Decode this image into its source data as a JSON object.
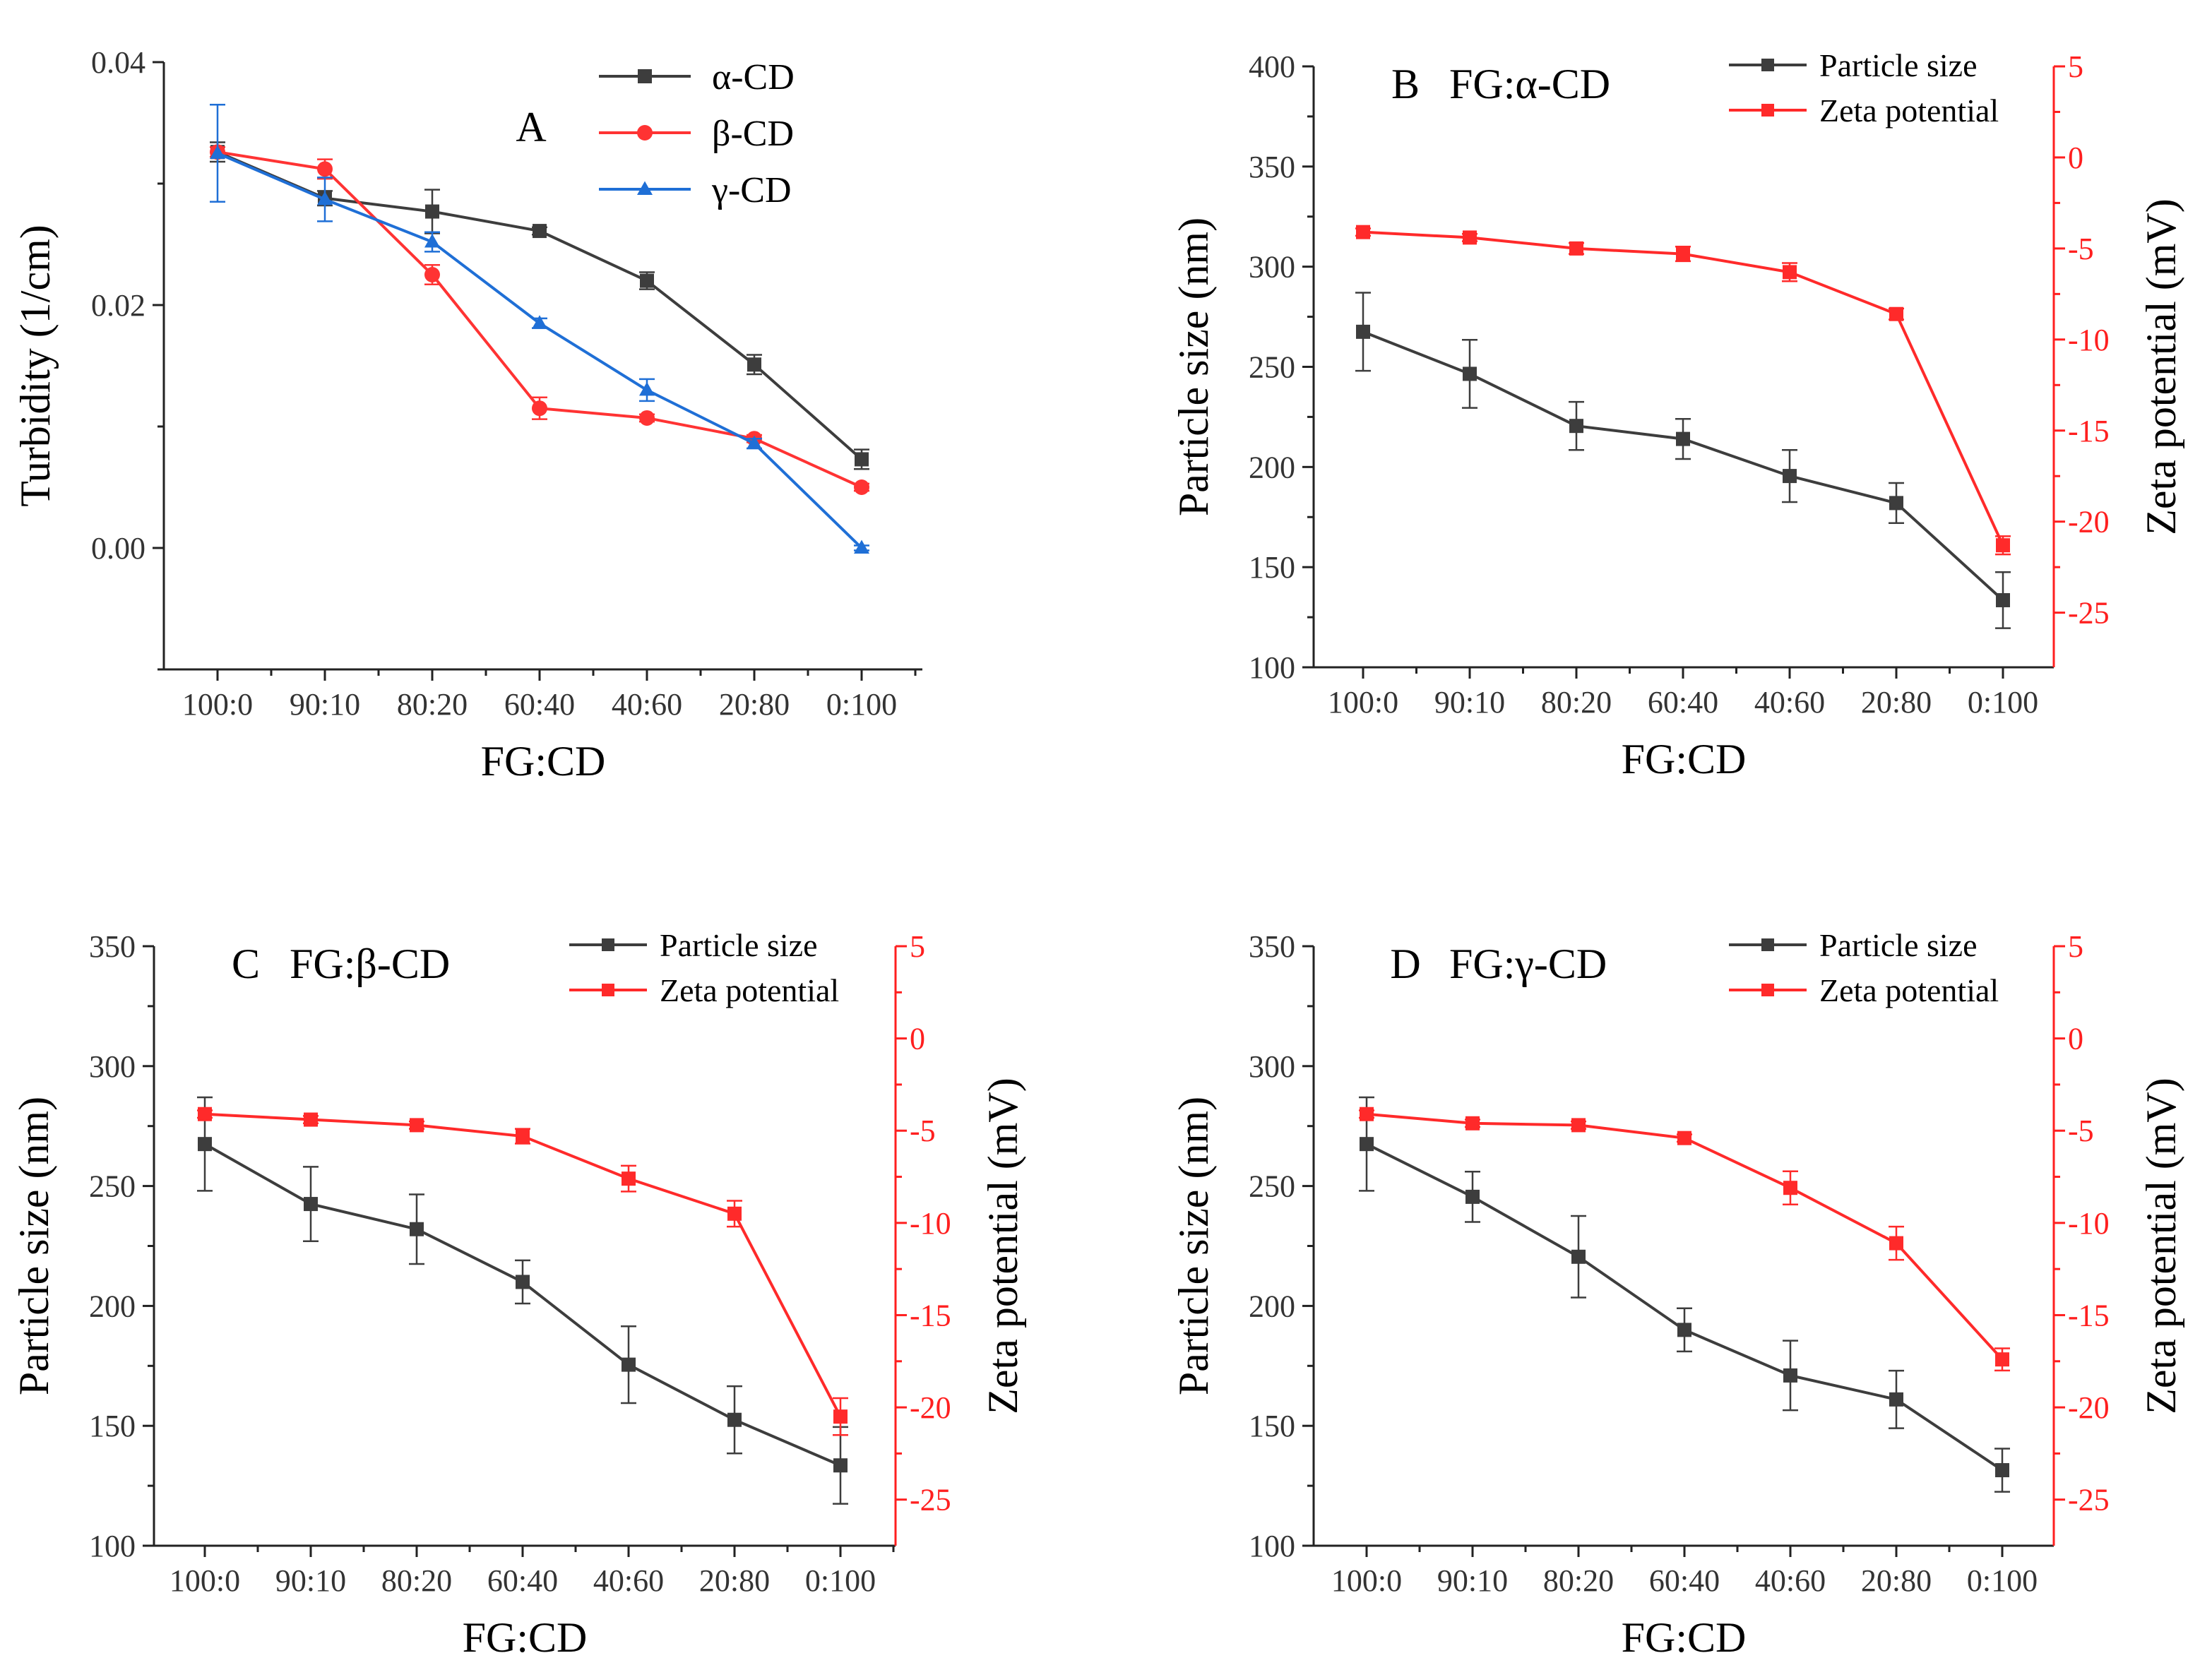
{
  "figure": {
    "colors": {
      "axis": "#222222",
      "alpha": "#3d3d3d",
      "beta": "#ff3333",
      "gamma": "#1f6fd6",
      "size": "#3d3d3d",
      "zeta": "#ff2a2a",
      "right_axis": "#ff1f1f"
    }
  },
  "chart_data": [
    {
      "id": "A",
      "type": "line",
      "panel_label": "A",
      "xlabel": "FG:CD",
      "ylabel": "Turbidity (1/cm)",
      "categories": [
        "100:0",
        "90:10",
        "80:20",
        "60:40",
        "40:60",
        "20:80",
        "0:100"
      ],
      "ylim": [
        -0.01,
        0.04
      ],
      "yticks": [
        0.0,
        0.02,
        0.04
      ],
      "ytick_labels": [
        "0.00",
        "0.02",
        "0.04"
      ],
      "legend_position": "top-right",
      "series": [
        {
          "name": "α-CD",
          "marker": "square",
          "color_key": "alpha",
          "values": [
            0.0326,
            0.0288,
            0.0277,
            0.0261,
            0.022,
            0.0151,
            0.0073
          ],
          "errors": [
            0.0008,
            0.0006,
            0.0018,
            0.0003,
            0.0007,
            0.0008,
            0.0008
          ]
        },
        {
          "name": "β-CD",
          "marker": "circle",
          "color_key": "beta",
          "values": [
            0.0326,
            0.0312,
            0.0225,
            0.0115,
            0.0107,
            0.009,
            0.005
          ],
          "errors": [
            0.0004,
            0.0008,
            0.0008,
            0.0009,
            0.0003,
            0.0003,
            0.0003
          ]
        },
        {
          "name": "γ-CD",
          "marker": "triangle",
          "color_key": "gamma",
          "values": [
            0.0325,
            0.0287,
            0.0252,
            0.0185,
            0.013,
            0.0086,
            0.0
          ],
          "errors": [
            0.004,
            0.0018,
            0.0008,
            0.0004,
            0.0009,
            0.0004,
            0.0002
          ]
        }
      ]
    },
    {
      "id": "B",
      "type": "line",
      "panel_label": "B",
      "panel_title": "FG:α-CD",
      "xlabel": "FG:CD",
      "ylabel": "Particle size (nm)",
      "y2label": "Zeta potential (mV)",
      "categories": [
        "100:0",
        "90:10",
        "80:20",
        "60:40",
        "40:60",
        "20:80",
        "0:100"
      ],
      "ylim": [
        100,
        400
      ],
      "yticks": [
        100,
        150,
        200,
        250,
        300,
        350,
        400
      ],
      "y2lim": [
        -28,
        5
      ],
      "y2ticks": [
        -25,
        -20,
        -15,
        -10,
        -5,
        0,
        5
      ],
      "legend_position": "top-right",
      "series": [
        {
          "name": "Particle size",
          "axis": "left",
          "marker": "square",
          "color_key": "size",
          "values": [
            267.5,
            246.5,
            220.5,
            214.0,
            195.5,
            182.0,
            133.5
          ],
          "errors": [
            19.5,
            17.0,
            12.0,
            10.0,
            13.0,
            10.0,
            14.0
          ]
        },
        {
          "name": "Zeta potential",
          "axis": "right",
          "marker": "square",
          "color_key": "zeta",
          "values": [
            -4.1,
            -4.4,
            -5.0,
            -5.3,
            -6.3,
            -8.6,
            -21.3
          ],
          "errors": [
            0.2,
            0.2,
            0.3,
            0.4,
            0.5,
            0.3,
            0.5
          ]
        }
      ]
    },
    {
      "id": "C",
      "type": "line",
      "panel_label": "C",
      "panel_title": "FG:β-CD",
      "xlabel": "FG:CD",
      "ylabel": "Particle size (nm)",
      "y2label": "Zeta potential (mV)",
      "categories": [
        "100:0",
        "90:10",
        "80:20",
        "60:40",
        "40:60",
        "20:80",
        "0:100"
      ],
      "ylim": [
        100,
        350
      ],
      "yticks": [
        100,
        150,
        200,
        250,
        300,
        350
      ],
      "y2lim": [
        -27.5,
        5
      ],
      "y2ticks": [
        -25,
        -20,
        -15,
        -10,
        -5,
        0,
        5
      ],
      "legend_position": "top-right",
      "series": [
        {
          "name": "Particle size",
          "axis": "left",
          "marker": "square",
          "color_key": "size",
          "values": [
            267.5,
            242.5,
            232.0,
            210.0,
            175.5,
            152.5,
            133.5
          ],
          "errors": [
            19.5,
            15.5,
            14.5,
            9.0,
            16.0,
            14.0,
            16.0
          ]
        },
        {
          "name": "Zeta potential",
          "axis": "right",
          "marker": "square",
          "color_key": "zeta",
          "values": [
            -4.1,
            -4.4,
            -4.7,
            -5.3,
            -7.6,
            -9.5,
            -20.5
          ],
          "errors": [
            0.2,
            0.2,
            0.2,
            0.4,
            0.7,
            0.7,
            1.0
          ]
        }
      ]
    },
    {
      "id": "D",
      "type": "line",
      "panel_label": "D",
      "panel_title": "FG:γ-CD",
      "xlabel": "FG:CD",
      "ylabel": "Particle size (nm)",
      "y2label": "Zeta potential (mV)",
      "categories": [
        "100:0",
        "90:10",
        "80:20",
        "60:40",
        "40:60",
        "20:80",
        "0:100"
      ],
      "ylim": [
        100,
        350
      ],
      "yticks": [
        100,
        150,
        200,
        250,
        300,
        350
      ],
      "y2lim": [
        -27.5,
        5
      ],
      "y2ticks": [
        -25,
        -20,
        -15,
        -10,
        -5,
        0,
        5
      ],
      "legend_position": "top-right",
      "series": [
        {
          "name": "Particle size",
          "axis": "left",
          "marker": "square",
          "color_key": "size",
          "values": [
            267.5,
            245.5,
            220.5,
            190.0,
            171.0,
            161.0,
            131.5
          ],
          "errors": [
            19.5,
            10.5,
            17.0,
            9.0,
            14.5,
            12.0,
            9.0
          ]
        },
        {
          "name": "Zeta potential",
          "axis": "right",
          "marker": "square",
          "color_key": "zeta",
          "values": [
            -4.1,
            -4.6,
            -4.7,
            -5.4,
            -8.1,
            -11.1,
            -17.4
          ],
          "errors": [
            0.2,
            0.2,
            0.2,
            0.2,
            0.9,
            0.9,
            0.6
          ]
        }
      ]
    }
  ]
}
